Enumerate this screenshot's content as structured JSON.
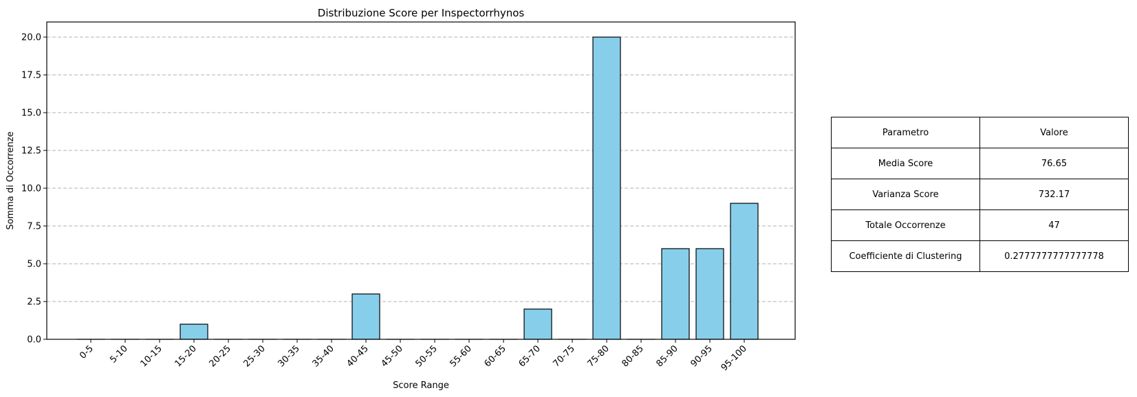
{
  "chart_data": {
    "type": "bar",
    "title": "Distribuzione Score per Inspectorrhynos",
    "xlabel": "Score Range",
    "ylabel": "Somma di Occorrenze",
    "categories": [
      "0-5",
      "5-10",
      "10-15",
      "15-20",
      "20-25",
      "25-30",
      "30-35",
      "35-40",
      "40-45",
      "45-50",
      "50-55",
      "55-60",
      "60-65",
      "65-70",
      "70-75",
      "75-80",
      "80-85",
      "85-90",
      "90-95",
      "95-100"
    ],
    "values": [
      0,
      0,
      0,
      1,
      0,
      0,
      0,
      0,
      3,
      0,
      0,
      0,
      0,
      2,
      0,
      20,
      0,
      6,
      6,
      9
    ],
    "ylim": [
      0,
      21
    ],
    "yticks": [
      0.0,
      2.5,
      5.0,
      7.5,
      10.0,
      12.5,
      15.0,
      17.5,
      20.0
    ],
    "ytick_labels": [
      "0.0",
      "2.5",
      "5.0",
      "7.5",
      "10.0",
      "12.5",
      "15.0",
      "17.5",
      "20.0"
    ],
    "bar_color": "#87ceeb",
    "edge_color": "#000000",
    "grid": "y-dashed",
    "xtick_rotation": 45
  },
  "table": {
    "header": [
      "Parametro",
      "Valore"
    ],
    "rows": [
      [
        "Media Score",
        "76.65"
      ],
      [
        "Varianza Score",
        "732.17"
      ],
      [
        "Totale Occorrenze",
        "47"
      ],
      [
        "Coefficiente di Clustering",
        "0.2777777777777778"
      ]
    ]
  }
}
